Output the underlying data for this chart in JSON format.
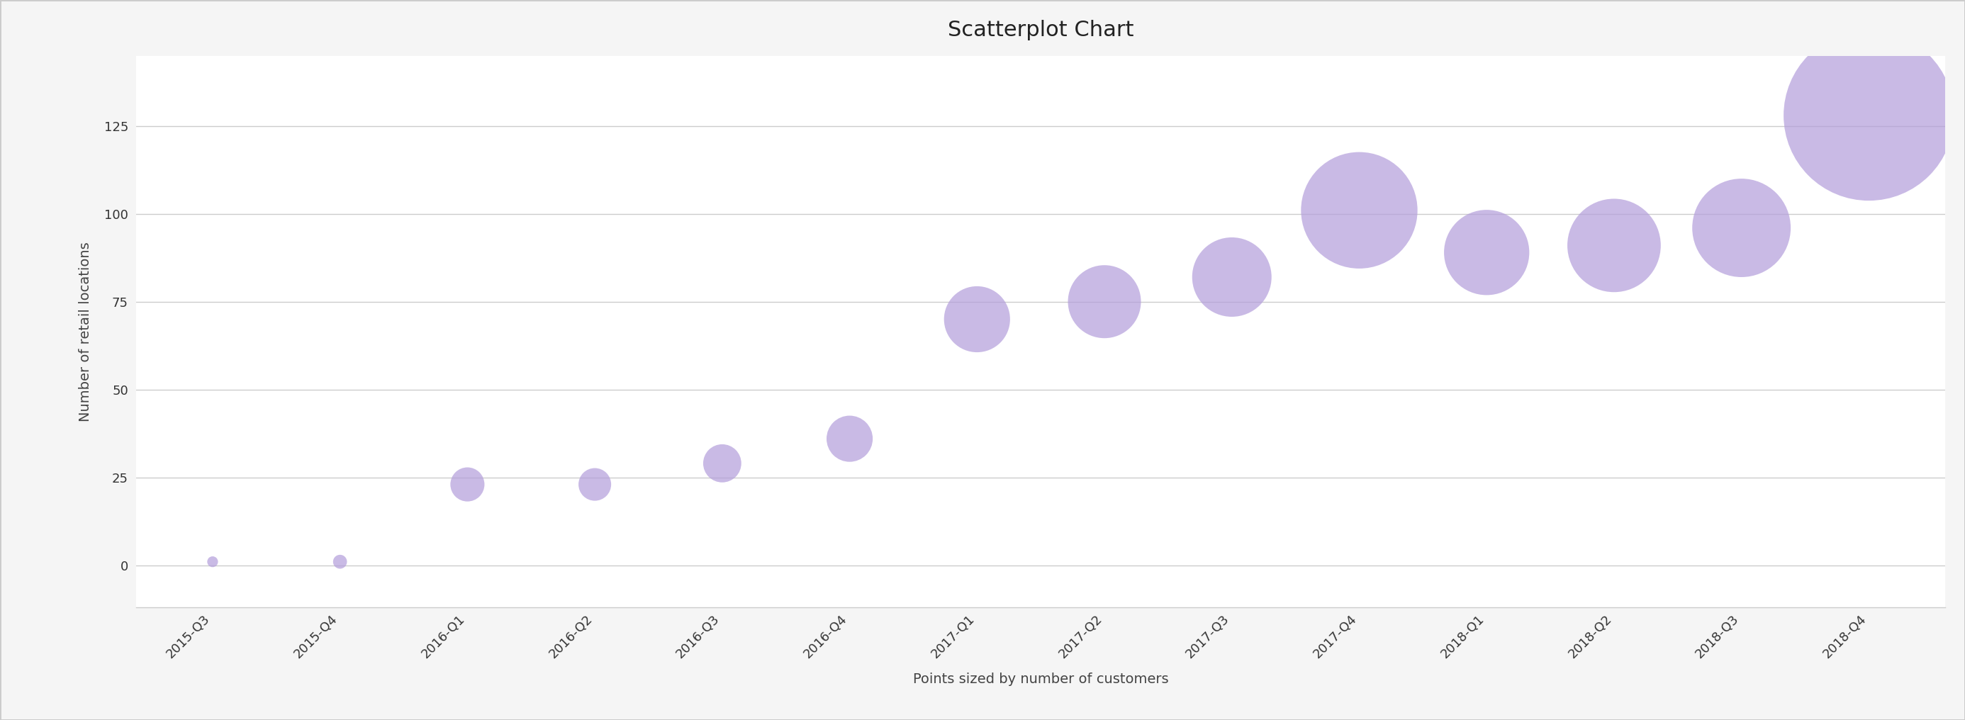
{
  "title": "Scatterplot Chart",
  "xlabel": "Points sized by number of customers",
  "ylabel": "Number of retail locations",
  "categories": [
    "2015-Q3",
    "2015-Q4",
    "2016-Q1",
    "2016-Q2",
    "2016-Q3",
    "2016-Q4",
    "2017-Q1",
    "2017-Q2",
    "2017-Q3",
    "2017-Q4",
    "2018-Q1",
    "2018-Q2",
    "2018-Q3",
    "2018-Q4"
  ],
  "y_values": [
    1,
    1,
    23,
    23,
    29,
    36,
    70,
    75,
    82,
    101,
    89,
    91,
    96,
    128
  ],
  "bubble_sizes": [
    120,
    200,
    1200,
    1100,
    1500,
    2200,
    4500,
    5500,
    6500,
    14000,
    7500,
    9000,
    10000,
    30000
  ],
  "point_color": "#b39ddb",
  "point_alpha": 0.7,
  "point_edgecolor": "none",
  "background_color": "#f5f5f5",
  "plot_background_color": "#ffffff",
  "grid_color": "#cccccc",
  "border_color": "#cccccc",
  "ylim": [
    -12,
    145
  ],
  "yticks": [
    0,
    25,
    50,
    75,
    100,
    125
  ],
  "title_fontsize": 22,
  "label_fontsize": 14,
  "tick_fontsize": 13
}
